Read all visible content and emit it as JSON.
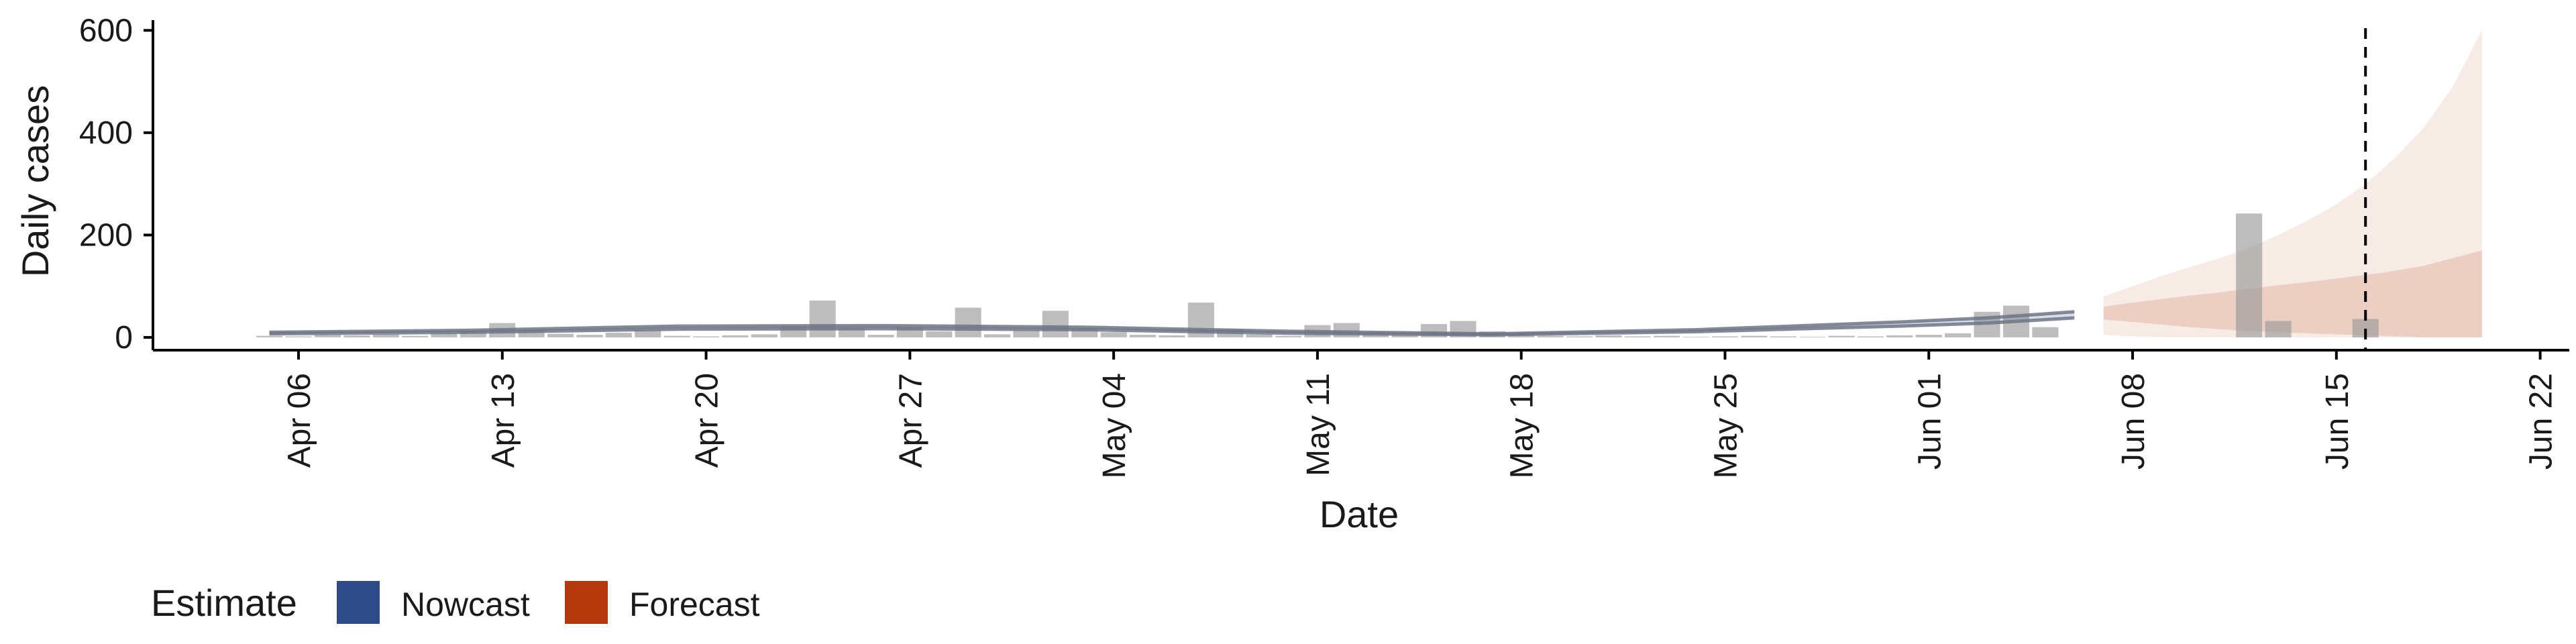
{
  "chart_data": {
    "type": "bar",
    "xlabel": "Date",
    "ylabel": "Daily cases",
    "xlim": [
      "2020-04-01",
      "2020-06-23"
    ],
    "ylim": [
      -25,
      620
    ],
    "x_ticks": [
      "Apr 06",
      "Apr 13",
      "Apr 20",
      "Apr 27",
      "May 04",
      "May 11",
      "May 18",
      "May 25",
      "Jun 01",
      "Jun 08",
      "Jun 15",
      "Jun 22"
    ],
    "y_ticks": [
      0,
      200,
      400,
      600
    ],
    "grid": false,
    "reference_line": {
      "date": "2020-06-16",
      "style": "dashed"
    },
    "colors": {
      "bars": "#999999",
      "nowcast": "#2E4A87",
      "forecast": "#B5370C",
      "axis": "#000000"
    },
    "reported_cases": {
      "dates": [
        "2020-04-05",
        "2020-04-06",
        "2020-04-07",
        "2020-04-08",
        "2020-04-09",
        "2020-04-10",
        "2020-04-11",
        "2020-04-12",
        "2020-04-13",
        "2020-04-14",
        "2020-04-15",
        "2020-04-16",
        "2020-04-17",
        "2020-04-18",
        "2020-04-19",
        "2020-04-20",
        "2020-04-21",
        "2020-04-22",
        "2020-04-23",
        "2020-04-24",
        "2020-04-25",
        "2020-04-26",
        "2020-04-27",
        "2020-04-28",
        "2020-04-29",
        "2020-04-30",
        "2020-05-01",
        "2020-05-02",
        "2020-05-03",
        "2020-05-04",
        "2020-05-05",
        "2020-05-06",
        "2020-05-07",
        "2020-05-08",
        "2020-05-09",
        "2020-05-10",
        "2020-05-11",
        "2020-05-12",
        "2020-05-13",
        "2020-05-14",
        "2020-05-15",
        "2020-05-16",
        "2020-05-17",
        "2020-05-18",
        "2020-05-19",
        "2020-05-20",
        "2020-05-21",
        "2020-05-22",
        "2020-05-23",
        "2020-05-24",
        "2020-05-25",
        "2020-05-26",
        "2020-05-27",
        "2020-05-28",
        "2020-05-29",
        "2020-05-30",
        "2020-05-31",
        "2020-06-01",
        "2020-06-02",
        "2020-06-03",
        "2020-06-04",
        "2020-06-05",
        "2020-06-06",
        "2020-06-07",
        "2020-06-08",
        "2020-06-09",
        "2020-06-10",
        "2020-06-11",
        "2020-06-12",
        "2020-06-13",
        "2020-06-14",
        "2020-06-15",
        "2020-06-16"
      ],
      "values": [
        3,
        2,
        5,
        4,
        6,
        3,
        8,
        12,
        28,
        15,
        7,
        5,
        9,
        14,
        3,
        2,
        4,
        6,
        22,
        72,
        18,
        5,
        20,
        12,
        58,
        6,
        14,
        52,
        18,
        10,
        5,
        4,
        68,
        16,
        6,
        3,
        24,
        28,
        10,
        5,
        26,
        32,
        12,
        8,
        3,
        2,
        4,
        2,
        3,
        1,
        2,
        3,
        2,
        1,
        3,
        2,
        4,
        5,
        8,
        50,
        62,
        20,
        0,
        0,
        0,
        0,
        0,
        0,
        242,
        32,
        0,
        0,
        36
      ]
    },
    "series": [
      {
        "name": "Nowcast",
        "dates": [
          "2020-04-05",
          "2020-04-12",
          "2020-04-19",
          "2020-04-26",
          "2020-05-03",
          "2020-05-10",
          "2020-05-17",
          "2020-05-24",
          "2020-05-31",
          "2020-06-03",
          "2020-06-06"
        ],
        "upper": [
          10,
          14,
          22,
          23,
          20,
          12,
          7,
          15,
          30,
          38,
          50
        ],
        "lower": [
          7,
          10,
          16,
          17,
          15,
          8,
          5,
          11,
          22,
          28,
          38
        ],
        "median": [
          8,
          12,
          19,
          20,
          17,
          10,
          6,
          13,
          26,
          33,
          44
        ]
      },
      {
        "name": "Forecast",
        "dates": [
          "2020-06-07",
          "2020-06-08",
          "2020-06-09",
          "2020-06-10",
          "2020-06-11",
          "2020-06-12",
          "2020-06-13",
          "2020-06-14",
          "2020-06-15",
          "2020-06-16",
          "2020-06-17",
          "2020-06-18",
          "2020-06-19",
          "2020-06-20"
        ],
        "outer_upper": [
          80,
          100,
          120,
          138,
          155,
          175,
          200,
          228,
          260,
          300,
          350,
          410,
          490,
          600
        ],
        "outer_lower": [
          5,
          2,
          0,
          0,
          0,
          0,
          0,
          0,
          0,
          0,
          0,
          0,
          0,
          0
        ],
        "inner_upper": [
          60,
          68,
          75,
          82,
          88,
          95,
          102,
          108,
          115,
          122,
          130,
          140,
          155,
          170
        ],
        "inner_lower": [
          35,
          30,
          25,
          20,
          16,
          12,
          10,
          8,
          6,
          4,
          2,
          0,
          0,
          0
        ]
      }
    ],
    "legend": {
      "title": "Estimate",
      "position": "bottom-left",
      "items": [
        {
          "label": "Nowcast",
          "color": "#2E4A87"
        },
        {
          "label": "Forecast",
          "color": "#B5370C"
        }
      ]
    }
  }
}
